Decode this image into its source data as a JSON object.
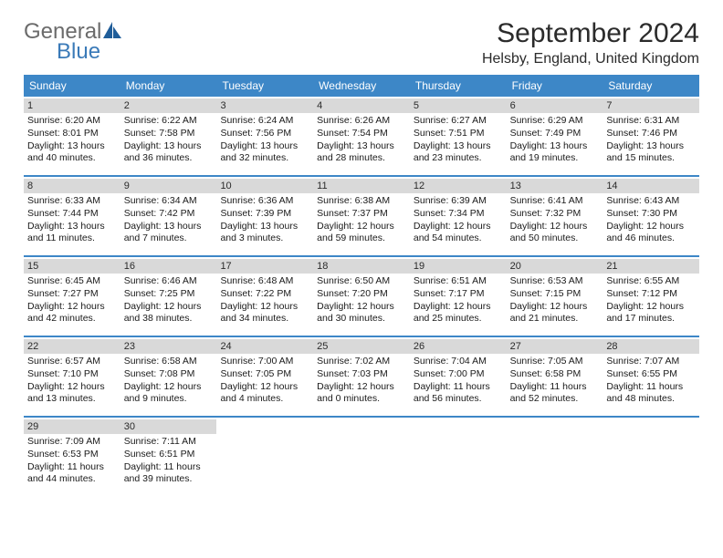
{
  "brand": {
    "word1": "General",
    "word2": "Blue",
    "text_color_gray": "#6b6b6b",
    "text_color_blue": "#3a7ab8",
    "icon_color": "#1f5d99"
  },
  "title": "September 2024",
  "location": "Helsby, England, United Kingdom",
  "colors": {
    "header_bg": "#3d87c7",
    "header_text": "#ffffff",
    "daynum_bg": "#d9d9d9",
    "text": "#1a1a1a",
    "border": "#3d87c7",
    "page_bg": "#ffffff"
  },
  "day_headers": [
    "Sunday",
    "Monday",
    "Tuesday",
    "Wednesday",
    "Thursday",
    "Friday",
    "Saturday"
  ],
  "weeks": [
    [
      {
        "num": "1",
        "sunrise": "6:20 AM",
        "sunset": "8:01 PM",
        "daylight": "13 hours and 40 minutes."
      },
      {
        "num": "2",
        "sunrise": "6:22 AM",
        "sunset": "7:58 PM",
        "daylight": "13 hours and 36 minutes."
      },
      {
        "num": "3",
        "sunrise": "6:24 AM",
        "sunset": "7:56 PM",
        "daylight": "13 hours and 32 minutes."
      },
      {
        "num": "4",
        "sunrise": "6:26 AM",
        "sunset": "7:54 PM",
        "daylight": "13 hours and 28 minutes."
      },
      {
        "num": "5",
        "sunrise": "6:27 AM",
        "sunset": "7:51 PM",
        "daylight": "13 hours and 23 minutes."
      },
      {
        "num": "6",
        "sunrise": "6:29 AM",
        "sunset": "7:49 PM",
        "daylight": "13 hours and 19 minutes."
      },
      {
        "num": "7",
        "sunrise": "6:31 AM",
        "sunset": "7:46 PM",
        "daylight": "13 hours and 15 minutes."
      }
    ],
    [
      {
        "num": "8",
        "sunrise": "6:33 AM",
        "sunset": "7:44 PM",
        "daylight": "13 hours and 11 minutes."
      },
      {
        "num": "9",
        "sunrise": "6:34 AM",
        "sunset": "7:42 PM",
        "daylight": "13 hours and 7 minutes."
      },
      {
        "num": "10",
        "sunrise": "6:36 AM",
        "sunset": "7:39 PM",
        "daylight": "13 hours and 3 minutes."
      },
      {
        "num": "11",
        "sunrise": "6:38 AM",
        "sunset": "7:37 PM",
        "daylight": "12 hours and 59 minutes."
      },
      {
        "num": "12",
        "sunrise": "6:39 AM",
        "sunset": "7:34 PM",
        "daylight": "12 hours and 54 minutes."
      },
      {
        "num": "13",
        "sunrise": "6:41 AM",
        "sunset": "7:32 PM",
        "daylight": "12 hours and 50 minutes."
      },
      {
        "num": "14",
        "sunrise": "6:43 AM",
        "sunset": "7:30 PM",
        "daylight": "12 hours and 46 minutes."
      }
    ],
    [
      {
        "num": "15",
        "sunrise": "6:45 AM",
        "sunset": "7:27 PM",
        "daylight": "12 hours and 42 minutes."
      },
      {
        "num": "16",
        "sunrise": "6:46 AM",
        "sunset": "7:25 PM",
        "daylight": "12 hours and 38 minutes."
      },
      {
        "num": "17",
        "sunrise": "6:48 AM",
        "sunset": "7:22 PM",
        "daylight": "12 hours and 34 minutes."
      },
      {
        "num": "18",
        "sunrise": "6:50 AM",
        "sunset": "7:20 PM",
        "daylight": "12 hours and 30 minutes."
      },
      {
        "num": "19",
        "sunrise": "6:51 AM",
        "sunset": "7:17 PM",
        "daylight": "12 hours and 25 minutes."
      },
      {
        "num": "20",
        "sunrise": "6:53 AM",
        "sunset": "7:15 PM",
        "daylight": "12 hours and 21 minutes."
      },
      {
        "num": "21",
        "sunrise": "6:55 AM",
        "sunset": "7:12 PM",
        "daylight": "12 hours and 17 minutes."
      }
    ],
    [
      {
        "num": "22",
        "sunrise": "6:57 AM",
        "sunset": "7:10 PM",
        "daylight": "12 hours and 13 minutes."
      },
      {
        "num": "23",
        "sunrise": "6:58 AM",
        "sunset": "7:08 PM",
        "daylight": "12 hours and 9 minutes."
      },
      {
        "num": "24",
        "sunrise": "7:00 AM",
        "sunset": "7:05 PM",
        "daylight": "12 hours and 4 minutes."
      },
      {
        "num": "25",
        "sunrise": "7:02 AM",
        "sunset": "7:03 PM",
        "daylight": "12 hours and 0 minutes."
      },
      {
        "num": "26",
        "sunrise": "7:04 AM",
        "sunset": "7:00 PM",
        "daylight": "11 hours and 56 minutes."
      },
      {
        "num": "27",
        "sunrise": "7:05 AM",
        "sunset": "6:58 PM",
        "daylight": "11 hours and 52 minutes."
      },
      {
        "num": "28",
        "sunrise": "7:07 AM",
        "sunset": "6:55 PM",
        "daylight": "11 hours and 48 minutes."
      }
    ],
    [
      {
        "num": "29",
        "sunrise": "7:09 AM",
        "sunset": "6:53 PM",
        "daylight": "11 hours and 44 minutes."
      },
      {
        "num": "30",
        "sunrise": "7:11 AM",
        "sunset": "6:51 PM",
        "daylight": "11 hours and 39 minutes."
      },
      {
        "empty": true
      },
      {
        "empty": true
      },
      {
        "empty": true
      },
      {
        "empty": true
      },
      {
        "empty": true
      }
    ]
  ],
  "labels": {
    "sunrise": "Sunrise:",
    "sunset": "Sunset:",
    "daylight": "Daylight:"
  }
}
